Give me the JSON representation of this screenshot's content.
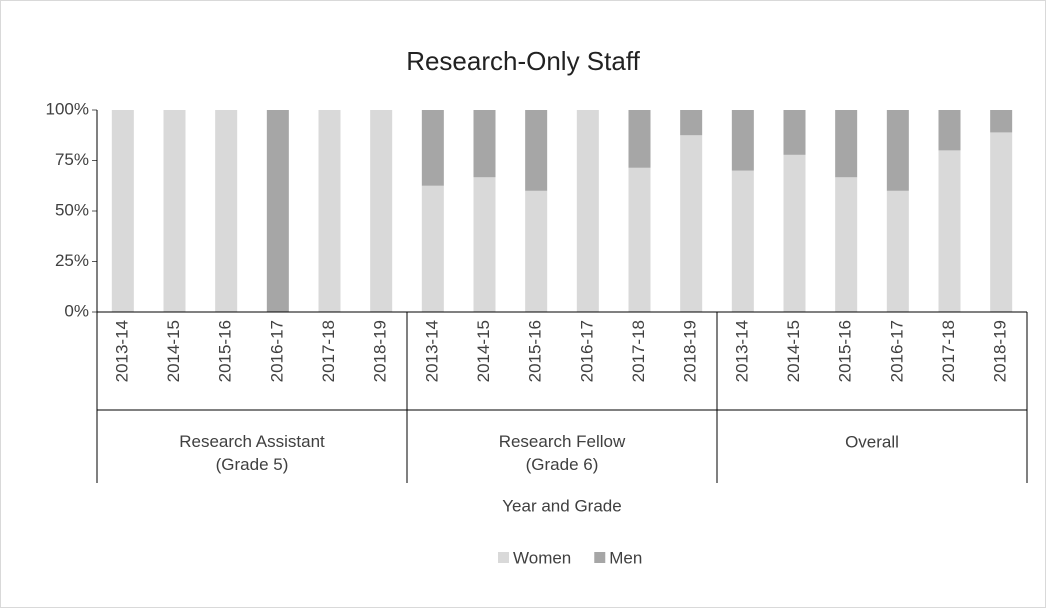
{
  "chart_data": {
    "type": "stacked_bar",
    "title": "Research-Only Staff",
    "x_label": "Year and Grade",
    "groups": [
      {
        "name": [
          "Research Assistant",
          "(Grade 5)"
        ],
        "categories": [
          "2013-14",
          "2014-15",
          "2015-16",
          "2016-17",
          "2017-18",
          "2018-19"
        ]
      },
      {
        "name": [
          "Research Fellow",
          "(Grade 6)"
        ],
        "categories": [
          "2013-14",
          "2014-15",
          "2015-16",
          "2016-17",
          "2017-18",
          "2018-19"
        ]
      },
      {
        "name": [
          "Overall"
        ],
        "categories": [
          "2013-14",
          "2014-15",
          "2015-16",
          "2016-17",
          "2017-18",
          "2018-19"
        ]
      }
    ],
    "series": [
      {
        "name": "Women",
        "color": "#d9d9d9",
        "values": [
          100,
          100,
          100,
          0,
          100,
          100,
          62.5,
          66.7,
          60,
          100,
          71.4,
          87.5,
          70,
          77.8,
          66.7,
          60,
          80,
          88.9
        ]
      },
      {
        "name": "Men",
        "color": "#a6a6a6",
        "values": [
          0,
          0,
          0,
          100,
          0,
          0,
          37.5,
          33.3,
          40,
          0,
          28.6,
          12.5,
          30,
          22.2,
          33.3,
          40,
          20,
          11.1
        ]
      }
    ],
    "ylim": [
      0,
      100
    ],
    "yticks": [
      {
        "value": 0,
        "label": "0%"
      },
      {
        "value": 25,
        "label": "25%"
      },
      {
        "value": 50,
        "label": "50%"
      },
      {
        "value": 75,
        "label": "75%"
      },
      {
        "value": 100,
        "label": "100%"
      }
    ],
    "grid": false,
    "legend": "bottom"
  }
}
